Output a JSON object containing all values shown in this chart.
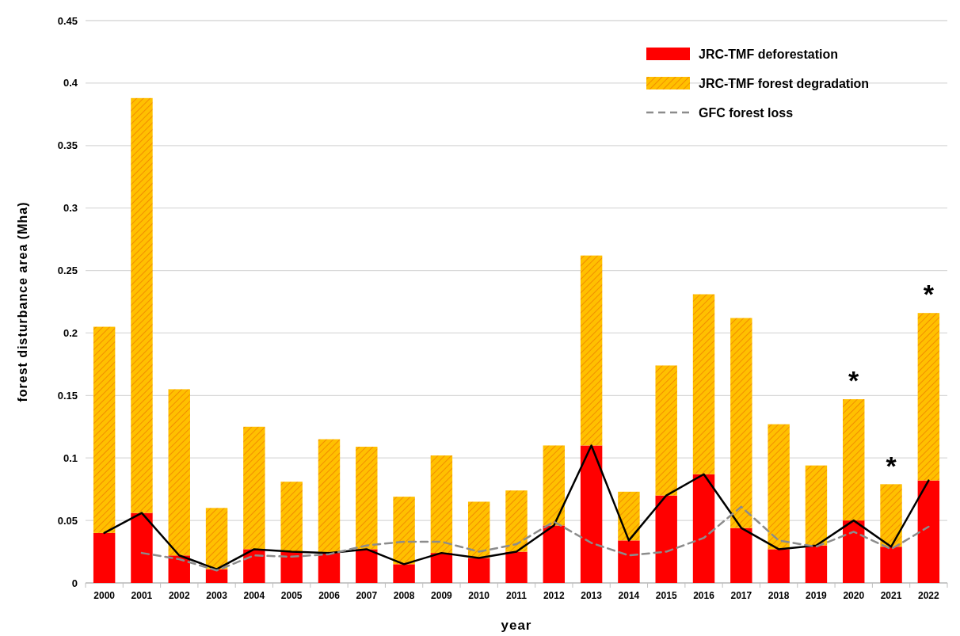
{
  "chart_data": {
    "type": "bar",
    "stacked": true,
    "xlabel": "year",
    "ylabel": "forest disturbance area (Mha)",
    "categories": [
      "2000",
      "2001",
      "2002",
      "2003",
      "2004",
      "2005",
      "2006",
      "2007",
      "2008",
      "2009",
      "2010",
      "2011",
      "2012",
      "2013",
      "2014",
      "2015",
      "2016",
      "2017",
      "2018",
      "2019",
      "2020",
      "2021",
      "2022"
    ],
    "series": [
      {
        "name": "JRC-TMF deforestation",
        "color": "#ff0000",
        "values": [
          0.04,
          0.056,
          0.022,
          0.011,
          0.027,
          0.025,
          0.024,
          0.027,
          0.015,
          0.024,
          0.02,
          0.025,
          0.046,
          0.11,
          0.034,
          0.07,
          0.087,
          0.044,
          0.027,
          0.03,
          0.05,
          0.029,
          0.082
        ]
      },
      {
        "name": "JRC-TMF forest degradation",
        "color": "#ffc000",
        "values": [
          0.165,
          0.332,
          0.133,
          0.049,
          0.098,
          0.056,
          0.091,
          0.082,
          0.054,
          0.078,
          0.045,
          0.049,
          0.064,
          0.152,
          0.039,
          0.104,
          0.144,
          0.168,
          0.1,
          0.064,
          0.097,
          0.05,
          0.134
        ]
      },
      {
        "type": "line",
        "color": "#000000",
        "line_style": "solid",
        "values": [
          0.04,
          0.056,
          0.022,
          0.011,
          0.027,
          0.025,
          0.024,
          0.027,
          0.015,
          0.024,
          0.02,
          0.025,
          0.046,
          0.11,
          0.034,
          0.07,
          0.087,
          0.044,
          0.027,
          0.03,
          0.05,
          0.029,
          0.082
        ]
      },
      {
        "type": "line",
        "name": "GFC forest loss",
        "color": "#8c8c8c",
        "line_style": "dashed",
        "values": [
          null,
          0.024,
          0.019,
          0.01,
          0.022,
          0.021,
          0.023,
          0.03,
          0.033,
          0.033,
          0.025,
          0.031,
          0.049,
          0.032,
          0.022,
          0.025,
          0.036,
          0.061,
          0.034,
          0.029,
          0.041,
          0.027,
          0.045
        ]
      }
    ],
    "ylim": [
      0,
      0.45
    ],
    "yticks": [
      0,
      0.05,
      0.1,
      0.15,
      0.2,
      0.25,
      0.3,
      0.35,
      0.4,
      0.45
    ],
    "grid": "y",
    "legend": "top right",
    "annotations": [
      {
        "text": "*",
        "x": "2020",
        "y": 0.147
      },
      {
        "text": "*",
        "x": "2021",
        "y": 0.079
      },
      {
        "text": "*",
        "x": "2022",
        "y": 0.216
      }
    ]
  }
}
